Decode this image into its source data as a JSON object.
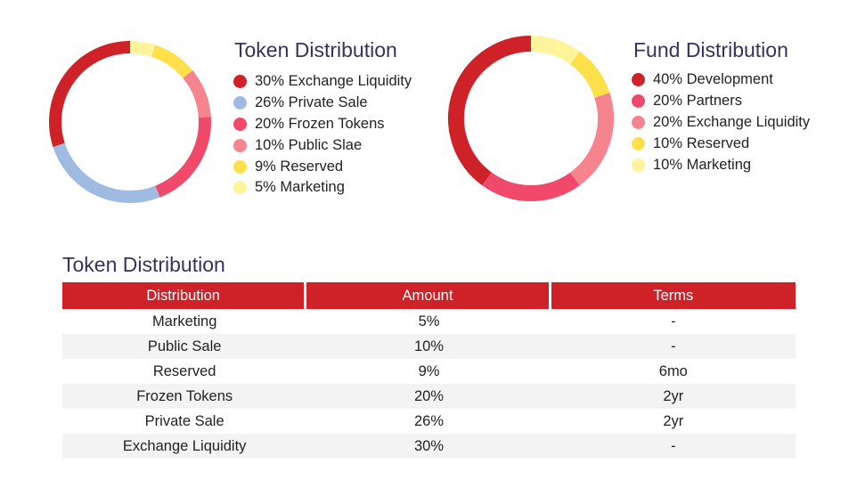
{
  "chart_data": [
    {
      "type": "pie",
      "title": "Token Distribution",
      "donut": true,
      "legend_position": "right",
      "slices": [
        {
          "label": "30% Exchange Liquidity",
          "value": 30,
          "color": "#cf2128"
        },
        {
          "label": "26% Private Sale",
          "value": 26,
          "color": "#9fbbe1"
        },
        {
          "label": "20% Frozen Tokens",
          "value": 20,
          "color": "#f0496a"
        },
        {
          "label": "10% Public Slae",
          "value": 10,
          "color": "#f6848f"
        },
        {
          "label": "9% Reserved",
          "value": 9,
          "color": "#fee04a"
        },
        {
          "label": "5% Marketing",
          "value": 5,
          "color": "#fff39b"
        }
      ]
    },
    {
      "type": "pie",
      "title": "Fund Distribution",
      "donut": true,
      "legend_position": "right",
      "slices": [
        {
          "label": "40% Development",
          "value": 40,
          "color": "#cf2128"
        },
        {
          "label": "20% Partners",
          "value": 20,
          "color": "#f0496a"
        },
        {
          "label": "20% Exchange Liquidity",
          "value": 20,
          "color": "#f6848f"
        },
        {
          "label": "10% Reserved",
          "value": 10,
          "color": "#fee04a"
        },
        {
          "label": "10% Marketing",
          "value": 10,
          "color": "#fff39b"
        }
      ]
    }
  ],
  "table": {
    "title": "Token Distribution",
    "headers": [
      "Distribution",
      "Amount",
      "Terms"
    ],
    "rows": [
      [
        "Marketing",
        "5%",
        "-"
      ],
      [
        "Public Sale",
        "10%",
        "-"
      ],
      [
        "Reserved",
        "9%",
        "6mo"
      ],
      [
        "Frozen Tokens",
        "20%",
        "2yr"
      ],
      [
        "Private Sale",
        "26%",
        "2yr"
      ],
      [
        "Exchange Liquidity",
        "30%",
        "-"
      ]
    ]
  }
}
